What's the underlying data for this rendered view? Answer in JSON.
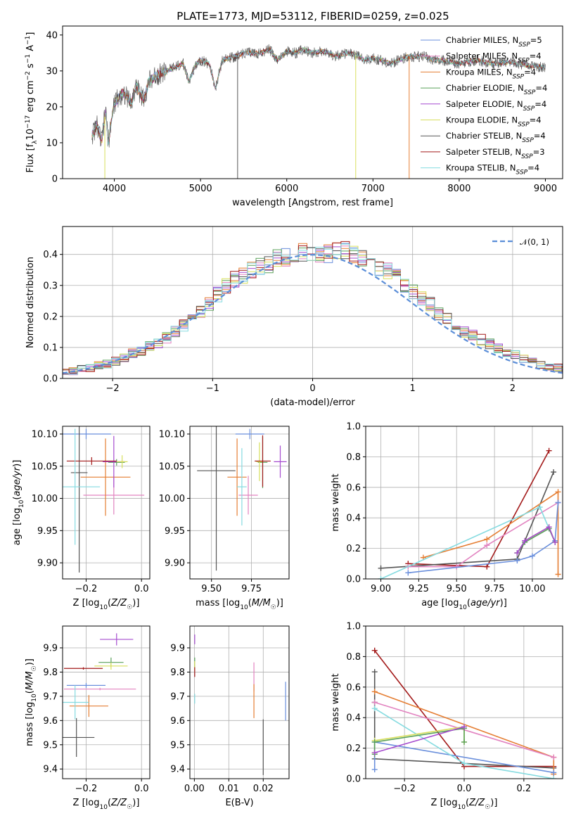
{
  "figure_title": "PLATE=1773, MJD=53112, FIBERID=0259, z=0.025",
  "colors": {
    "Chabrier MILES": "#6a8fdc",
    "Salpeter MILES": "#e283c0",
    "Kroupa MILES": "#e57e33",
    "Chabrier ELODIE": "#5aa05a",
    "Salpeter ELODIE": "#a64ccf",
    "Kroupa ELODIE": "#d8df5c",
    "Chabrier STELIB": "#555555",
    "Salpeter STELIB": "#a31a1a",
    "Kroupa STELIB": "#85dbe0",
    "normal": "#5b8ed8",
    "grid": "#b0b0b0"
  },
  "chart_data": [
    {
      "id": "spectrum",
      "type": "line",
      "xlabel": "wavelength [Angstrom, rest frame]",
      "ylabel": "Flux [f_λ10^-17 erg cm^-2 s^-1 A^-1]",
      "xlim": [
        3400,
        9200
      ],
      "ylim": [
        0,
        42.5
      ],
      "xticks": [
        4000,
        5000,
        6000,
        7000,
        8000,
        9000
      ],
      "yticks": [
        0,
        10,
        20,
        30,
        40
      ],
      "grid": false,
      "legend": "upper right",
      "legend_entries": [
        {
          "base": "Chabrier MILES, N",
          "sub": "SSP",
          "tail": "=5"
        },
        {
          "base": "Salpeter MILES, N",
          "sub": "SSP",
          "tail": "=4"
        },
        {
          "base": "Kroupa MILES, N",
          "sub": "SSP",
          "tail": "=4"
        },
        {
          "base": "Chabrier ELODIE, N",
          "sub": "SSP",
          "tail": "=4"
        },
        {
          "base": "Salpeter ELODIE, N",
          "sub": "SSP",
          "tail": "=4"
        },
        {
          "base": "Kroupa ELODIE, N",
          "sub": "SSP",
          "tail": "=4"
        },
        {
          "base": "Chabrier STELIB, N",
          "sub": "SSP",
          "tail": "=4"
        },
        {
          "base": "Salpeter STELIB, N",
          "sub": "SSP",
          "tail": "=3"
        },
        {
          "base": "Kroupa STELIB, N",
          "sub": "SSP",
          "tail": "=4"
        }
      ],
      "spectrum_points": [
        [
          3740,
          12
        ],
        [
          3800,
          15
        ],
        [
          3850,
          10
        ],
        [
          3900,
          19
        ],
        [
          3930,
          10
        ],
        [
          3970,
          17
        ],
        [
          4000,
          21
        ],
        [
          4100,
          24
        ],
        [
          4200,
          21
        ],
        [
          4250,
          26
        ],
        [
          4340,
          22
        ],
        [
          4400,
          27
        ],
        [
          4500,
          29
        ],
        [
          4600,
          30
        ],
        [
          4700,
          31
        ],
        [
          4800,
          32
        ],
        [
          4861,
          27
        ],
        [
          4950,
          32
        ],
        [
          5000,
          33
        ],
        [
          5100,
          32
        ],
        [
          5175,
          25
        ],
        [
          5250,
          33
        ],
        [
          5400,
          34
        ],
        [
          5500,
          35
        ],
        [
          5600,
          35
        ],
        [
          5700,
          35
        ],
        [
          5800,
          36
        ],
        [
          5890,
          33
        ],
        [
          6000,
          35.5
        ],
        [
          6100,
          35
        ],
        [
          6200,
          36
        ],
        [
          6300,
          35
        ],
        [
          6400,
          35.5
        ],
        [
          6500,
          35
        ],
        [
          6563,
          34
        ],
        [
          6700,
          35
        ],
        [
          6800,
          34.5
        ],
        [
          6900,
          33
        ],
        [
          7000,
          33.5
        ],
        [
          7100,
          33
        ],
        [
          7200,
          32
        ],
        [
          7300,
          33
        ],
        [
          7400,
          34
        ],
        [
          7600,
          34
        ],
        [
          7700,
          33
        ],
        [
          7800,
          33
        ],
        [
          8000,
          32
        ],
        [
          8200,
          33
        ],
        [
          8400,
          32
        ],
        [
          8600,
          32.5
        ],
        [
          8800,
          31.5
        ],
        [
          9000,
          31
        ]
      ],
      "dropouts": [
        {
          "x": 3890,
          "color": "Kroupa ELODIE"
        },
        {
          "x": 5430,
          "color": "Chabrier STELIB"
        },
        {
          "x": 6800,
          "color": "Kroupa ELODIE"
        },
        {
          "x": 7420,
          "color": "Kroupa MILES"
        }
      ]
    },
    {
      "id": "residuals",
      "type": "histogram",
      "xlabel": "(data-model)/error",
      "ylabel": "Normed distribution",
      "xlim": [
        -2.5,
        2.5
      ],
      "ylim": [
        0,
        0.49
      ],
      "xticks": [
        -2,
        -1,
        0,
        1,
        2
      ],
      "yticks": [
        0.0,
        0.1,
        0.2,
        0.3,
        0.4
      ],
      "grid": true,
      "legend": "upper right",
      "normal_label": "𝒩(0, 1)",
      "bin_width": 0.1,
      "envelope": [
        0.02,
        0.025,
        0.03,
        0.035,
        0.04,
        0.047,
        0.055,
        0.065,
        0.08,
        0.09,
        0.105,
        0.115,
        0.13,
        0.15,
        0.17,
        0.19,
        0.215,
        0.24,
        0.27,
        0.3,
        0.32,
        0.33,
        0.35,
        0.36,
        0.37,
        0.39,
        0.39,
        0.4,
        0.41,
        0.4,
        0.4,
        0.4,
        0.41,
        0.41,
        0.4,
        0.39,
        0.38,
        0.36,
        0.35,
        0.33,
        0.3,
        0.28,
        0.26,
        0.24,
        0.21,
        0.19,
        0.17,
        0.15,
        0.14,
        0.125,
        0.11,
        0.095,
        0.085,
        0.075,
        0.065,
        0.055,
        0.045,
        0.04,
        0.035,
        0.03
      ]
    },
    {
      "id": "age_vs_Z",
      "type": "errorbar",
      "xlabel": "Z [log10(Z/Z☉)]",
      "ylabel": "age  [log10(age/yr)]",
      "xlim": [
        -0.285,
        0.03
      ],
      "ylim": [
        9.875,
        10.112
      ],
      "xticks": [
        -0.2,
        0.0
      ],
      "yticks": [
        9.9,
        9.95,
        10.0,
        10.05,
        10.1
      ],
      "grid": true,
      "points": [
        {
          "model": "Chabrier MILES",
          "x": -0.2,
          "y": 10.1,
          "xerr": 0.09,
          "yerr": 0.008
        },
        {
          "model": "Salpeter MILES",
          "x": -0.1,
          "y": 10.005,
          "xerr": 0.11,
          "yerr": 0.03
        },
        {
          "model": "Kroupa MILES",
          "x": -0.13,
          "y": 10.033,
          "xerr": 0.09,
          "yerr": 0.06
        },
        {
          "model": "Chabrier ELODIE",
          "x": -0.09,
          "y": 10.056,
          "xerr": 0.03,
          "yerr": 0.005
        },
        {
          "model": "Salpeter ELODIE",
          "x": -0.1,
          "y": 10.057,
          "xerr": 0.04,
          "yerr": 0.04
        },
        {
          "model": "Kroupa ELODIE",
          "x": -0.07,
          "y": 10.057,
          "xerr": 0.02,
          "yerr": 0.01
        },
        {
          "model": "Chabrier STELIB",
          "x": -0.225,
          "y": 10.04,
          "xerr": 0.03,
          "yerr": 0.155
        },
        {
          "model": "Salpeter STELIB",
          "x": -0.18,
          "y": 10.058,
          "xerr": 0.09,
          "yerr": 0.006
        },
        {
          "model": "Kroupa STELIB",
          "x": -0.24,
          "y": 10.018,
          "xerr": 0.09,
          "yerr": 0.09
        }
      ]
    },
    {
      "id": "age_vs_mass",
      "type": "errorbar",
      "xlabel": "mass [log10(M/M☉)]",
      "ylabel": "",
      "xlim": [
        9.365,
        9.985
      ],
      "ylim": [
        9.875,
        10.112
      ],
      "xticks": [
        9.5,
        9.75
      ],
      "yticks": [
        9.9,
        9.95,
        10.0,
        10.05,
        10.1
      ],
      "grid": true,
      "points": [
        {
          "model": "Chabrier MILES",
          "x": 9.74,
          "y": 10.1,
          "xerr": 0.09,
          "yerr": 0.008
        },
        {
          "model": "Salpeter MILES",
          "x": 9.73,
          "y": 10.005,
          "xerr": 0.06,
          "yerr": 0.03
        },
        {
          "model": "Kroupa MILES",
          "x": 9.66,
          "y": 10.033,
          "xerr": 0.06,
          "yerr": 0.06
        },
        {
          "model": "Chabrier ELODIE",
          "x": 9.82,
          "y": 10.056,
          "xerr": 0.03,
          "yerr": 0.04
        },
        {
          "model": "Salpeter ELODIE",
          "x": 9.93,
          "y": 10.057,
          "xerr": 0.04,
          "yerr": 0.025
        },
        {
          "model": "Kroupa ELODIE",
          "x": 9.8,
          "y": 10.057,
          "xerr": 0.02,
          "yerr": 0.03
        },
        {
          "model": "Chabrier STELIB",
          "x": 9.53,
          "y": 10.043,
          "xerr": 0.12,
          "yerr": 0.155
        },
        {
          "model": "Salpeter STELIB",
          "x": 9.82,
          "y": 10.058,
          "xerr": 0.05,
          "yerr": 0.04
        },
        {
          "model": "Kroupa STELIB",
          "x": 9.69,
          "y": 10.018,
          "xerr": 0.03,
          "yerr": 0.06
        }
      ]
    },
    {
      "id": "weight_vs_age",
      "type": "line",
      "xlabel": "age  [log10(age/yr)]",
      "ylabel": "mass weight",
      "xlim": [
        8.9,
        10.2
      ],
      "ylim": [
        0,
        1.0
      ],
      "xticks": [
        9.0,
        9.25,
        9.5,
        9.75,
        10.0
      ],
      "yticks": [
        0.0,
        0.2,
        0.4,
        0.6,
        0.8,
        1.0
      ],
      "grid": true,
      "series": [
        {
          "model": "Salpeter STELIB",
          "x": [
            9.18,
            9.7,
            10.11
          ],
          "y": [
            0.1,
            0.08,
            0.84
          ]
        },
        {
          "model": "Chabrier STELIB",
          "x": [
            9.0,
            9.9,
            10.14
          ],
          "y": [
            0.07,
            0.13,
            0.7
          ]
        },
        {
          "model": "Kroupa MILES",
          "x": [
            9.28,
            9.7,
            10.17,
            10.17
          ],
          "y": [
            0.14,
            0.26,
            0.57,
            0.03
          ]
        },
        {
          "model": "Salpeter MILES",
          "x": [
            9.18,
            9.5,
            9.7,
            10.17
          ],
          "y": [
            0.08,
            0.08,
            0.22,
            0.5
          ]
        },
        {
          "model": "Chabrier MILES",
          "x": [
            9.18,
            9.9,
            10.0,
            10.15,
            10.17
          ],
          "y": [
            0.04,
            0.12,
            0.15,
            0.25,
            0.5
          ]
        },
        {
          "model": "Kroupa STELIB",
          "x": [
            9.0,
            10.05,
            10.11
          ],
          "y": [
            0.0,
            0.47,
            0.33
          ]
        },
        {
          "model": "Kroupa ELODIE",
          "x": [
            9.9,
            9.95,
            10.11,
            10.15
          ],
          "y": [
            0.17,
            0.25,
            0.34,
            0.24
          ]
        },
        {
          "model": "Chabrier ELODIE",
          "x": [
            9.9,
            9.95,
            10.11,
            10.15
          ],
          "y": [
            0.17,
            0.24,
            0.33,
            0.24
          ]
        },
        {
          "model": "Salpeter ELODIE",
          "x": [
            9.9,
            9.95,
            10.11,
            10.15
          ],
          "y": [
            0.17,
            0.25,
            0.34,
            0.24
          ]
        }
      ]
    },
    {
      "id": "mass_vs_Z",
      "type": "errorbar",
      "xlabel": "Z [log10(Z/Z☉)]",
      "ylabel": "mass [log10(M/M☉)]",
      "xlim": [
        -0.285,
        0.03
      ],
      "ylim": [
        9.36,
        9.99
      ],
      "xticks": [
        -0.2,
        0.0
      ],
      "yticks": [
        9.4,
        9.5,
        9.6,
        9.7,
        9.8,
        9.9
      ],
      "grid": true,
      "points": [
        {
          "model": "Chabrier MILES",
          "x": -0.2,
          "y": 9.745,
          "xerr": 0.07,
          "yerr": 0.01
        },
        {
          "model": "Salpeter MILES",
          "x": -0.15,
          "y": 9.73,
          "xerr": 0.13,
          "yerr": 0.005
        },
        {
          "model": "Kroupa MILES",
          "x": -0.19,
          "y": 9.66,
          "xerr": 0.07,
          "yerr": 0.045
        },
        {
          "model": "Chabrier ELODIE",
          "x": -0.11,
          "y": 9.84,
          "xerr": 0.045,
          "yerr": 0.02
        },
        {
          "model": "Salpeter ELODIE",
          "x": -0.09,
          "y": 9.935,
          "xerr": 0.06,
          "yerr": 0.025
        },
        {
          "model": "Kroupa ELODIE",
          "x": -0.11,
          "y": 9.825,
          "xerr": 0.06,
          "yerr": 0.015
        },
        {
          "model": "Chabrier STELIB",
          "x": -0.235,
          "y": 9.53,
          "xerr": 0.065,
          "yerr": 0.08
        },
        {
          "model": "Salpeter STELIB",
          "x": -0.21,
          "y": 9.815,
          "xerr": 0.07,
          "yerr": 0.005
        },
        {
          "model": "Kroupa STELIB",
          "x": -0.24,
          "y": 9.675,
          "xerr": 0.05,
          "yerr": 0.07
        }
      ]
    },
    {
      "id": "mass_vs_ebv",
      "type": "errorbar",
      "xlabel": "E(B-V)",
      "ylabel": "",
      "xlim": [
        -0.0013,
        0.0275
      ],
      "ylim": [
        9.36,
        9.99
      ],
      "xticks": [
        0.0,
        0.01,
        0.02
      ],
      "yticks": [
        9.4,
        9.5,
        9.6,
        9.7,
        9.8,
        9.9
      ],
      "grid": true,
      "points": [
        {
          "model": "Chabrier MILES",
          "x": 0.0265,
          "y": 9.68,
          "xerr": 0,
          "yerr": 0.08
        },
        {
          "model": "Salpeter MILES",
          "x": 0.0173,
          "y": 9.78,
          "xerr": 0,
          "yerr": 0.06
        },
        {
          "model": "Kroupa MILES",
          "x": 0.0173,
          "y": 9.68,
          "xerr": 0,
          "yerr": 0.07
        },
        {
          "model": "Chabrier ELODIE",
          "x": 0.0001,
          "y": 9.84,
          "xerr": 0,
          "yerr": 0.02
        },
        {
          "model": "Salpeter ELODIE",
          "x": 0.0001,
          "y": 9.935,
          "xerr": 0,
          "yerr": 0.02
        },
        {
          "model": "Kroupa ELODIE",
          "x": 0.0001,
          "y": 9.825,
          "xerr": 0,
          "yerr": 0.02
        },
        {
          "model": "Chabrier STELIB",
          "x": 0.02,
          "y": 9.49,
          "xerr": 0,
          "yerr": 0.115
        },
        {
          "model": "Salpeter STELIB",
          "x": 0.0001,
          "y": 9.8,
          "xerr": 0,
          "yerr": 0.02
        },
        {
          "model": "Kroupa STELIB",
          "x": 0.0001,
          "y": 9.69,
          "xerr": 0,
          "yerr": 0.02
        }
      ]
    },
    {
      "id": "weight_vs_Z",
      "type": "line",
      "xlabel": "Z [log10(Z/Z☉)]",
      "ylabel": "mass weight",
      "xlim": [
        -0.33,
        0.33
      ],
      "ylim": [
        0,
        1.0
      ],
      "xticks": [
        -0.2,
        0.0,
        0.2
      ],
      "yticks": [
        0.0,
        0.2,
        0.4,
        0.6,
        0.8,
        1.0
      ],
      "grid": true,
      "series": [
        {
          "model": "Salpeter STELIB",
          "x": [
            -0.3,
            0.0,
            0.3
          ],
          "y": [
            0.84,
            0.08,
            0.08
          ]
        },
        {
          "model": "Chabrier STELIB",
          "x": [
            -0.3,
            -0.3,
            -0.3,
            0.3
          ],
          "y": [
            0.7,
            0.5,
            0.13,
            0.07
          ]
        },
        {
          "model": "Kroupa MILES",
          "x": [
            -0.3,
            0.3,
            0.3
          ],
          "y": [
            0.57,
            0.14,
            0.03
          ]
        },
        {
          "model": "Salpeter MILES",
          "x": [
            -0.3,
            0.3
          ],
          "y": [
            0.5,
            0.14
          ]
        },
        {
          "model": "Chabrier MILES",
          "x": [
            -0.3,
            -0.3,
            0.3
          ],
          "y": [
            0.06,
            0.24,
            0.04
          ]
        },
        {
          "model": "Kroupa STELIB",
          "x": [
            -0.3,
            0.0,
            0.3
          ],
          "y": [
            0.46,
            0.1,
            0.0
          ]
        },
        {
          "model": "Kroupa ELODIE",
          "x": [
            -0.3,
            -0.3,
            0.0,
            0.0
          ],
          "y": [
            0.17,
            0.25,
            0.34,
            0.24
          ]
        },
        {
          "model": "Chabrier ELODIE",
          "x": [
            -0.3,
            -0.3,
            0.0,
            0.0
          ],
          "y": [
            0.16,
            0.24,
            0.33,
            0.24
          ]
        },
        {
          "model": "Salpeter ELODIE",
          "x": [
            -0.3,
            0.0
          ],
          "y": [
            0.17,
            0.34
          ]
        }
      ]
    }
  ]
}
